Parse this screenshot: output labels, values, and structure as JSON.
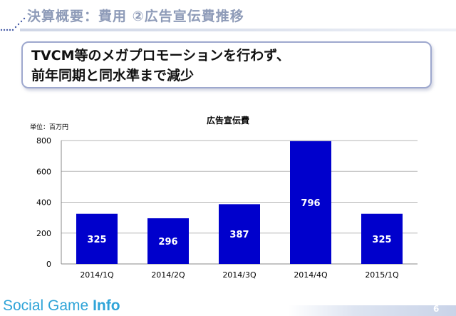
{
  "header": {
    "title": "決算概要：費用 ②広告宣伝費推移"
  },
  "callout": {
    "line1": "TVCM等のメガプロモーションを行わず、",
    "line2": "前年同期と同水準まで減少"
  },
  "chart_data": {
    "type": "bar",
    "title": "広告宣伝費",
    "unit_label": "単位：百万円",
    "categories": [
      "2014/1Q",
      "2014/2Q",
      "2014/3Q",
      "2014/4Q",
      "2015/1Q"
    ],
    "values": [
      325,
      296,
      387,
      796,
      325
    ],
    "ylim": [
      0,
      800
    ],
    "yticks": [
      0,
      200,
      400,
      600,
      800
    ],
    "grid": true,
    "bar_color": "#0000cc",
    "label_color": "#ffffff"
  },
  "footer": {
    "brand_light": "Social Game ",
    "brand_bold": "Info",
    "page": "6"
  }
}
